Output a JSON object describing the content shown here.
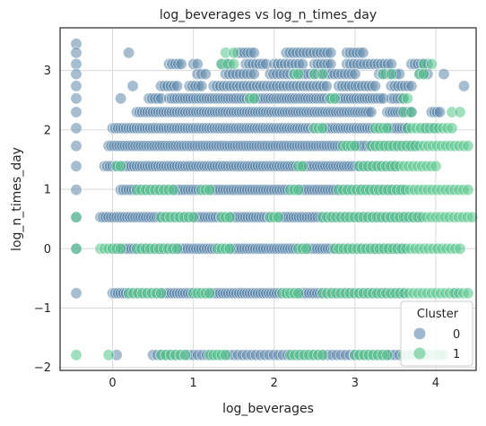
{
  "chart_data": {
    "type": "scatter",
    "title": "log_beverages vs log_n_times_day",
    "xlabel": "log_beverages",
    "ylabel": "log_n_times_day",
    "xlim": [
      -0.65,
      4.5
    ],
    "ylim": [
      -2.05,
      3.72
    ],
    "xticks": [
      0,
      1,
      2,
      3,
      4
    ],
    "yticks": [
      -2,
      -1,
      0,
      1,
      2,
      3
    ],
    "xtick_labels": [
      "0",
      "1",
      "2",
      "3",
      "4"
    ],
    "ytick_labels": [
      "−2",
      "−1",
      "0",
      "1",
      "2",
      "3"
    ],
    "grid": true,
    "legend": {
      "title": "Cluster",
      "position": "lower-right",
      "entries": [
        {
          "label": "0",
          "color": "#5f89ab"
        },
        {
          "label": "1",
          "color": "#55c48a"
        }
      ]
    },
    "series": [
      {
        "name": "0",
        "color": "#5f89ab",
        "edge": "#ffffff",
        "bands": [
          {
            "y": 3.45,
            "x_ranges": [
              [
                -0.45,
                -0.45
              ]
            ],
            "density": 1
          },
          {
            "y": 3.3,
            "x_ranges": [
              [
                -0.45,
                -0.45
              ],
              [
                0.2,
                0.2
              ],
              [
                1.55,
                1.75
              ],
              [
                2.15,
                2.7
              ],
              [
                2.9,
                3.1
              ]
            ],
            "density": 4
          },
          {
            "y": 3.11,
            "x_ranges": [
              [
                -0.45,
                -0.45
              ],
              [
                0.7,
                0.85
              ],
              [
                1.0,
                1.05
              ],
              [
                1.35,
                1.45
              ],
              [
                1.65,
                1.9
              ],
              [
                2.0,
                2.35
              ],
              [
                2.5,
                2.7
              ],
              [
                2.9,
                3.45
              ],
              [
                3.7,
                3.9
              ]
            ],
            "density": 4
          },
          {
            "y": 2.94,
            "x_ranges": [
              [
                -0.45,
                -0.45
              ],
              [
                1.05,
                1.15
              ],
              [
                1.4,
                1.75
              ],
              [
                1.95,
                3.0
              ],
              [
                3.3,
                3.55
              ],
              [
                3.8,
                3.9
              ],
              [
                4.1,
                4.1
              ]
            ],
            "density": 4
          },
          {
            "y": 2.74,
            "x_ranges": [
              [
                -0.45,
                -0.45
              ],
              [
                0.25,
                0.25
              ],
              [
                0.6,
                0.8
              ],
              [
                0.95,
                1.1
              ],
              [
                1.25,
                2.65
              ],
              [
                2.8,
                3.25
              ],
              [
                3.45,
                3.7
              ],
              [
                4.35,
                4.35
              ]
            ],
            "density": 4
          },
          {
            "y": 2.53,
            "x_ranges": [
              [
                -0.45,
                -0.45
              ],
              [
                0.1,
                0.1
              ],
              [
                0.45,
                0.6
              ],
              [
                0.7,
                3.35
              ],
              [
                3.45,
                3.6
              ]
            ],
            "density": 5
          },
          {
            "y": 2.3,
            "x_ranges": [
              [
                -0.45,
                -0.45
              ],
              [
                0.3,
                3.2
              ],
              [
                3.4,
                3.7
              ],
              [
                3.95,
                4.05
              ]
            ],
            "density": 5
          },
          {
            "y": 2.03,
            "x_ranges": [
              [
                -0.45,
                -0.45
              ],
              [
                0.0,
                3.65
              ],
              [
                3.85,
                4.0
              ]
            ],
            "density": 5
          },
          {
            "y": 1.73,
            "x_ranges": [
              [
                -0.45,
                -0.45
              ],
              [
                -0.05,
                3.75
              ]
            ],
            "density": 5
          },
          {
            "y": 1.39,
            "x_ranges": [
              [
                -0.45,
                -0.45
              ],
              [
                -0.1,
                3.5
              ]
            ],
            "density": 5
          },
          {
            "y": 0.99,
            "x_ranges": [
              [
                -0.45,
                -0.45
              ],
              [
                0.1,
                3.6
              ]
            ],
            "density": 5
          },
          {
            "y": 0.53,
            "x_ranges": [
              [
                -0.45,
                -0.45
              ],
              [
                -0.15,
                3.8
              ]
            ],
            "density": 5
          },
          {
            "y": 0.0,
            "x_ranges": [
              [
                -0.45,
                -0.45
              ],
              [
                0.0,
                3.6
              ]
            ],
            "density": 5
          },
          {
            "y": -0.75,
            "x_ranges": [
              [
                -0.45,
                -0.45
              ],
              [
                0.0,
                3.6
              ],
              [
                4.25,
                4.25
              ]
            ],
            "density": 5
          },
          {
            "y": -1.79,
            "x_ranges": [
              [
                0.05,
                0.05
              ],
              [
                0.5,
                3.55
              ],
              [
                4.05,
                4.05
              ]
            ],
            "density": 3
          }
        ]
      },
      {
        "name": "1",
        "color": "#55c48a",
        "edge": "#ffffff",
        "bands": [
          {
            "y": 3.3,
            "x_ranges": [
              [
                1.4,
                1.5
              ]
            ],
            "density": 2
          },
          {
            "y": 3.11,
            "x_ranges": [
              [
                1.35,
                1.5
              ],
              [
                3.85,
                3.95
              ]
            ],
            "density": 2
          },
          {
            "y": 2.94,
            "x_ranges": [
              [
                2.25,
                2.3
              ],
              [
                2.5,
                2.6
              ],
              [
                3.35,
                3.45
              ],
              [
                3.8,
                3.85
              ]
            ],
            "density": 2
          },
          {
            "y": 2.53,
            "x_ranges": [
              [
                1.7,
                1.75
              ],
              [
                2.7,
                2.75
              ],
              [
                3.6,
                3.65
              ]
            ],
            "density": 2
          },
          {
            "y": 2.3,
            "x_ranges": [
              [
                3.6,
                3.7
              ],
              [
                4.2,
                4.3
              ]
            ],
            "density": 2
          },
          {
            "y": 2.03,
            "x_ranges": [
              [
                2.5,
                2.6
              ],
              [
                3.25,
                3.4
              ],
              [
                3.65,
                4.2
              ]
            ],
            "density": 3
          },
          {
            "y": 1.73,
            "x_ranges": [
              [
                2.85,
                3.0
              ],
              [
                3.2,
                4.4
              ]
            ],
            "density": 3
          },
          {
            "y": 1.39,
            "x_ranges": [
              [
                0.05,
                0.1
              ],
              [
                2.3,
                2.35
              ],
              [
                3.05,
                4.0
              ]
            ],
            "density": 3
          },
          {
            "y": 0.99,
            "x_ranges": [
              [
                0.3,
                0.75
              ],
              [
                1.1,
                1.2
              ],
              [
                2.2,
                2.3
              ],
              [
                2.8,
                4.4
              ]
            ],
            "density": 3
          },
          {
            "y": 0.53,
            "x_ranges": [
              [
                -0.45,
                -0.45
              ],
              [
                0.6,
                1.0
              ],
              [
                1.35,
                1.45
              ],
              [
                1.95,
                2.05
              ],
              [
                2.6,
                4.45
              ]
            ],
            "density": 3
          },
          {
            "y": 0.0,
            "x_ranges": [
              [
                -0.45,
                -0.45
              ],
              [
                -0.15,
                0.1
              ],
              [
                0.3,
                0.8
              ],
              [
                1.3,
                1.45
              ],
              [
                2.3,
                2.4
              ],
              [
                2.75,
                4.3
              ]
            ],
            "density": 3
          },
          {
            "y": -0.75,
            "x_ranges": [
              [
                0.2,
                0.6
              ],
              [
                1.0,
                1.2
              ],
              [
                2.1,
                2.3
              ],
              [
                2.6,
                4.4
              ]
            ],
            "density": 3
          },
          {
            "y": -1.79,
            "x_ranges": [
              [
                -0.45,
                -0.45
              ],
              [
                -0.05,
                -0.05
              ],
              [
                0.6,
                0.9
              ],
              [
                1.2,
                1.4
              ],
              [
                2.2,
                2.6
              ],
              [
                3.0,
                3.4
              ],
              [
                3.6,
                4.1
              ]
            ],
            "density": 3
          }
        ]
      }
    ]
  }
}
